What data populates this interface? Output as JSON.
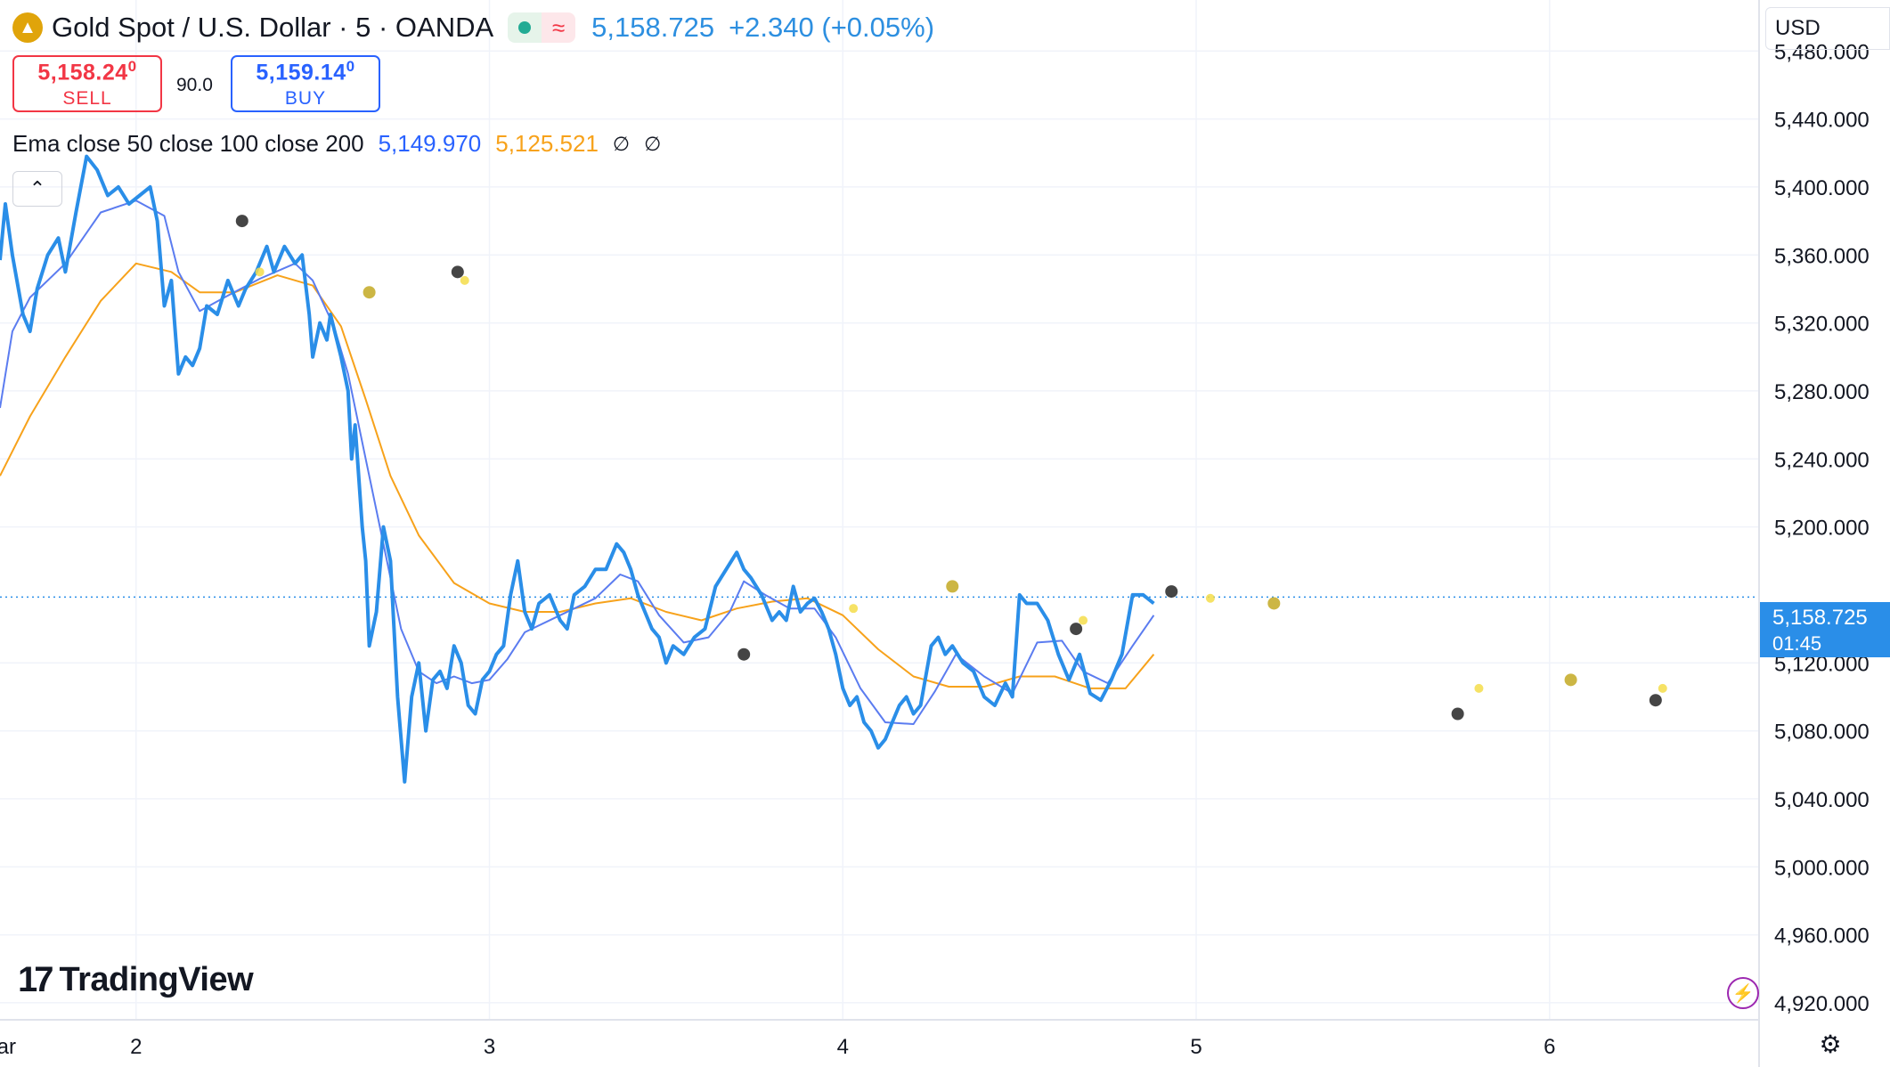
{
  "header": {
    "title": "Gold Spot / U.S. Dollar · 5 · OANDA",
    "icon": "gold-bars-icon",
    "last_price": "5,158.725",
    "change": "+2.340 (+0.05%)"
  },
  "trade": {
    "sell_price_main": "5,158.24",
    "sell_price_sup": "0",
    "sell_label": "SELL",
    "spread": "90.0",
    "buy_price_main": "5,159.14",
    "buy_price_sup": "0",
    "buy_label": "BUY"
  },
  "indicator": {
    "name": "Ema close 50 close 100 close 200",
    "ema50_value": "5,149.970",
    "ema100_value": "5,125.521",
    "ema200_value": "∅",
    "extra_value": "∅"
  },
  "currency_label": "USD",
  "price_tag": {
    "price": "5,158.725",
    "countdown": "01:45"
  },
  "branding": {
    "logo_text": "TradingView"
  },
  "colors": {
    "price_line": "#2a8ee8",
    "ema50": "#5b7cf0",
    "ema100": "#f7a21b",
    "cross_dark": "#3b3b3b",
    "cross_gold": "#c9b23a",
    "cross_yellow": "#f5dd4a",
    "sell": "#f23645",
    "buy": "#2962ff"
  },
  "chart_data": {
    "type": "line",
    "title": "Gold Spot / U.S. Dollar · 5 · OANDA",
    "y_axis_ticks": [
      "5,480.000",
      "5,440.000",
      "5,400.000",
      "5,360.000",
      "5,320.000",
      "5,280.000",
      "5,240.000",
      "5,200.000",
      "5,120.000",
      "5,080.000",
      "5,040.000",
      "5,000.000",
      "4,960.000",
      "4,920.000"
    ],
    "ylim": [
      4910,
      5510
    ],
    "x_axis_ticks": [
      {
        "label": "ar",
        "day": 1.6
      },
      {
        "label": "2",
        "day": 2
      },
      {
        "label": "3",
        "day": 3
      },
      {
        "label": "4",
        "day": 4
      },
      {
        "label": "5",
        "day": 5
      },
      {
        "label": "6",
        "day": 6
      }
    ],
    "xlim": [
      1.615,
      6.555
    ],
    "grid": true,
    "last_value": 5158.725,
    "series": [
      {
        "key": "price",
        "points": [
          [
            1.615,
            5357
          ],
          [
            1.63,
            5390
          ],
          [
            1.65,
            5360
          ],
          [
            1.68,
            5325
          ],
          [
            1.7,
            5315
          ],
          [
            1.72,
            5340
          ],
          [
            1.75,
            5360
          ],
          [
            1.78,
            5370
          ],
          [
            1.8,
            5350
          ],
          [
            1.83,
            5385
          ],
          [
            1.86,
            5418
          ],
          [
            1.89,
            5410
          ],
          [
            1.92,
            5395
          ],
          [
            1.95,
            5400
          ],
          [
            1.98,
            5390
          ],
          [
            2.01,
            5395
          ],
          [
            2.04,
            5400
          ],
          [
            2.06,
            5380
          ],
          [
            2.08,
            5330
          ],
          [
            2.1,
            5345
          ],
          [
            2.12,
            5290
          ],
          [
            2.14,
            5300
          ],
          [
            2.16,
            5295
          ],
          [
            2.18,
            5305
          ],
          [
            2.2,
            5330
          ],
          [
            2.23,
            5325
          ],
          [
            2.26,
            5345
          ],
          [
            2.29,
            5330
          ],
          [
            2.31,
            5340
          ],
          [
            2.34,
            5350
          ],
          [
            2.37,
            5365
          ],
          [
            2.39,
            5350
          ],
          [
            2.42,
            5365
          ],
          [
            2.45,
            5355
          ],
          [
            2.47,
            5360
          ],
          [
            2.49,
            5325
          ],
          [
            2.5,
            5300
          ],
          [
            2.52,
            5320
          ],
          [
            2.54,
            5310
          ],
          [
            2.55,
            5325
          ],
          [
            2.58,
            5300
          ],
          [
            2.6,
            5280
          ],
          [
            2.61,
            5240
          ],
          [
            2.62,
            5260
          ],
          [
            2.64,
            5200
          ],
          [
            2.65,
            5180
          ],
          [
            2.66,
            5130
          ],
          [
            2.68,
            5150
          ],
          [
            2.7,
            5200
          ],
          [
            2.72,
            5180
          ],
          [
            2.73,
            5140
          ],
          [
            2.74,
            5100
          ],
          [
            2.76,
            5050
          ],
          [
            2.78,
            5100
          ],
          [
            2.8,
            5120
          ],
          [
            2.82,
            5080
          ],
          [
            2.84,
            5110
          ],
          [
            2.86,
            5115
          ],
          [
            2.88,
            5105
          ],
          [
            2.9,
            5130
          ],
          [
            2.92,
            5120
          ],
          [
            2.94,
            5095
          ],
          [
            2.96,
            5090
          ],
          [
            2.98,
            5110
          ],
          [
            3.0,
            5115
          ],
          [
            3.02,
            5125
          ],
          [
            3.04,
            5130
          ],
          [
            3.06,
            5160
          ],
          [
            3.08,
            5180
          ],
          [
            3.1,
            5150
          ],
          [
            3.12,
            5140
          ],
          [
            3.14,
            5155
          ],
          [
            3.17,
            5160
          ],
          [
            3.2,
            5145
          ],
          [
            3.22,
            5140
          ],
          [
            3.24,
            5160
          ],
          [
            3.27,
            5165
          ],
          [
            3.3,
            5175
          ],
          [
            3.33,
            5175
          ],
          [
            3.36,
            5190
          ],
          [
            3.38,
            5185
          ],
          [
            3.4,
            5175
          ],
          [
            3.42,
            5160
          ],
          [
            3.44,
            5150
          ],
          [
            3.46,
            5140
          ],
          [
            3.48,
            5135
          ],
          [
            3.5,
            5120
          ],
          [
            3.52,
            5130
          ],
          [
            3.55,
            5125
          ],
          [
            3.58,
            5135
          ],
          [
            3.61,
            5140
          ],
          [
            3.64,
            5165
          ],
          [
            3.67,
            5175
          ],
          [
            3.7,
            5185
          ],
          [
            3.72,
            5175
          ],
          [
            3.74,
            5170
          ],
          [
            3.77,
            5160
          ],
          [
            3.8,
            5145
          ],
          [
            3.82,
            5150
          ],
          [
            3.84,
            5145
          ],
          [
            3.86,
            5165
          ],
          [
            3.88,
            5150
          ],
          [
            3.9,
            5155
          ],
          [
            3.92,
            5158
          ],
          [
            3.94,
            5150
          ],
          [
            3.96,
            5140
          ],
          [
            3.98,
            5125
          ],
          [
            4.0,
            5105
          ],
          [
            4.02,
            5095
          ],
          [
            4.04,
            5100
          ],
          [
            4.06,
            5085
          ],
          [
            4.08,
            5080
          ],
          [
            4.1,
            5070
          ],
          [
            4.12,
            5075
          ],
          [
            4.14,
            5085
          ],
          [
            4.16,
            5095
          ],
          [
            4.18,
            5100
          ],
          [
            4.2,
            5090
          ],
          [
            4.22,
            5095
          ],
          [
            4.25,
            5130
          ],
          [
            4.27,
            5135
          ],
          [
            4.29,
            5125
          ],
          [
            4.31,
            5130
          ],
          [
            4.34,
            5120
          ],
          [
            4.37,
            5115
          ],
          [
            4.4,
            5100
          ],
          [
            4.43,
            5095
          ],
          [
            4.46,
            5108
          ],
          [
            4.48,
            5100
          ],
          [
            4.5,
            5160
          ],
          [
            4.52,
            5155
          ],
          [
            4.55,
            5155
          ],
          [
            4.58,
            5145
          ],
          [
            4.61,
            5125
          ],
          [
            4.64,
            5110
          ],
          [
            4.67,
            5125
          ],
          [
            4.7,
            5102
          ],
          [
            4.73,
            5098
          ],
          [
            4.76,
            5110
          ],
          [
            4.79,
            5125
          ],
          [
            4.82,
            5160
          ],
          [
            4.85,
            5160
          ],
          [
            4.88,
            5155
          ]
        ]
      },
      {
        "key": "ema50",
        "points": [
          [
            1.615,
            5270
          ],
          [
            1.65,
            5315
          ],
          [
            1.7,
            5335
          ],
          [
            1.8,
            5355
          ],
          [
            1.9,
            5385
          ],
          [
            2.0,
            5392
          ],
          [
            2.08,
            5383
          ],
          [
            2.12,
            5350
          ],
          [
            2.18,
            5327
          ],
          [
            2.25,
            5335
          ],
          [
            2.35,
            5346
          ],
          [
            2.45,
            5355
          ],
          [
            2.5,
            5345
          ],
          [
            2.56,
            5318
          ],
          [
            2.6,
            5290
          ],
          [
            2.65,
            5240
          ],
          [
            2.7,
            5190
          ],
          [
            2.75,
            5140
          ],
          [
            2.8,
            5115
          ],
          [
            2.85,
            5108
          ],
          [
            2.9,
            5112
          ],
          [
            2.95,
            5108
          ],
          [
            3.0,
            5110
          ],
          [
            3.05,
            5122
          ],
          [
            3.1,
            5138
          ],
          [
            3.2,
            5148
          ],
          [
            3.3,
            5158
          ],
          [
            3.37,
            5172
          ],
          [
            3.42,
            5168
          ],
          [
            3.48,
            5148
          ],
          [
            3.55,
            5132
          ],
          [
            3.62,
            5135
          ],
          [
            3.68,
            5150
          ],
          [
            3.72,
            5168
          ],
          [
            3.78,
            5160
          ],
          [
            3.85,
            5152
          ],
          [
            3.92,
            5152
          ],
          [
            3.98,
            5135
          ],
          [
            4.05,
            5105
          ],
          [
            4.12,
            5085
          ],
          [
            4.2,
            5084
          ],
          [
            4.26,
            5103
          ],
          [
            4.32,
            5125
          ],
          [
            4.4,
            5112
          ],
          [
            4.48,
            5102
          ],
          [
            4.55,
            5132
          ],
          [
            4.62,
            5133
          ],
          [
            4.68,
            5115
          ],
          [
            4.75,
            5108
          ],
          [
            4.82,
            5130
          ],
          [
            4.88,
            5148
          ]
        ]
      },
      {
        "key": "ema100",
        "points": [
          [
            1.615,
            5230
          ],
          [
            1.7,
            5265
          ],
          [
            1.8,
            5300
          ],
          [
            1.9,
            5333
          ],
          [
            2.0,
            5355
          ],
          [
            2.1,
            5350
          ],
          [
            2.18,
            5338
          ],
          [
            2.28,
            5338
          ],
          [
            2.4,
            5348
          ],
          [
            2.5,
            5342
          ],
          [
            2.58,
            5318
          ],
          [
            2.65,
            5275
          ],
          [
            2.72,
            5230
          ],
          [
            2.8,
            5195
          ],
          [
            2.9,
            5167
          ],
          [
            3.0,
            5155
          ],
          [
            3.1,
            5150
          ],
          [
            3.2,
            5150
          ],
          [
            3.3,
            5155
          ],
          [
            3.4,
            5158
          ],
          [
            3.5,
            5150
          ],
          [
            3.6,
            5145
          ],
          [
            3.7,
            5152
          ],
          [
            3.8,
            5156
          ],
          [
            3.9,
            5158
          ],
          [
            4.0,
            5148
          ],
          [
            4.1,
            5128
          ],
          [
            4.2,
            5112
          ],
          [
            4.3,
            5106
          ],
          [
            4.4,
            5106
          ],
          [
            4.5,
            5112
          ],
          [
            4.6,
            5112
          ],
          [
            4.7,
            5105
          ],
          [
            4.8,
            5105
          ],
          [
            4.88,
            5125
          ]
        ]
      }
    ],
    "crossover_markers": [
      {
        "day": 2.3,
        "price": 5380,
        "kind": "dark"
      },
      {
        "day": 2.35,
        "price": 5350,
        "kind": "yellow"
      },
      {
        "day": 2.66,
        "price": 5338,
        "kind": "gold"
      },
      {
        "day": 2.91,
        "price": 5350,
        "kind": "dark"
      },
      {
        "day": 2.93,
        "price": 5345,
        "kind": "yellow"
      },
      {
        "day": 3.72,
        "price": 5125,
        "kind": "dark"
      },
      {
        "day": 4.03,
        "price": 5152,
        "kind": "yellow"
      },
      {
        "day": 4.31,
        "price": 5165,
        "kind": "gold"
      },
      {
        "day": 4.66,
        "price": 5140,
        "kind": "dark"
      },
      {
        "day": 4.68,
        "price": 5145,
        "kind": "yellow"
      },
      {
        "day": 4.93,
        "price": 5162,
        "kind": "dark"
      },
      {
        "day": 5.04,
        "price": 5158,
        "kind": "yellow"
      },
      {
        "day": 5.22,
        "price": 5155,
        "kind": "gold"
      },
      {
        "day": 5.74,
        "price": 5090,
        "kind": "dark"
      },
      {
        "day": 5.8,
        "price": 5105,
        "kind": "yellow"
      },
      {
        "day": 6.06,
        "price": 5110,
        "kind": "gold"
      },
      {
        "day": 6.3,
        "price": 5098,
        "kind": "dark"
      },
      {
        "day": 6.32,
        "price": 5105,
        "kind": "yellow"
      }
    ]
  }
}
